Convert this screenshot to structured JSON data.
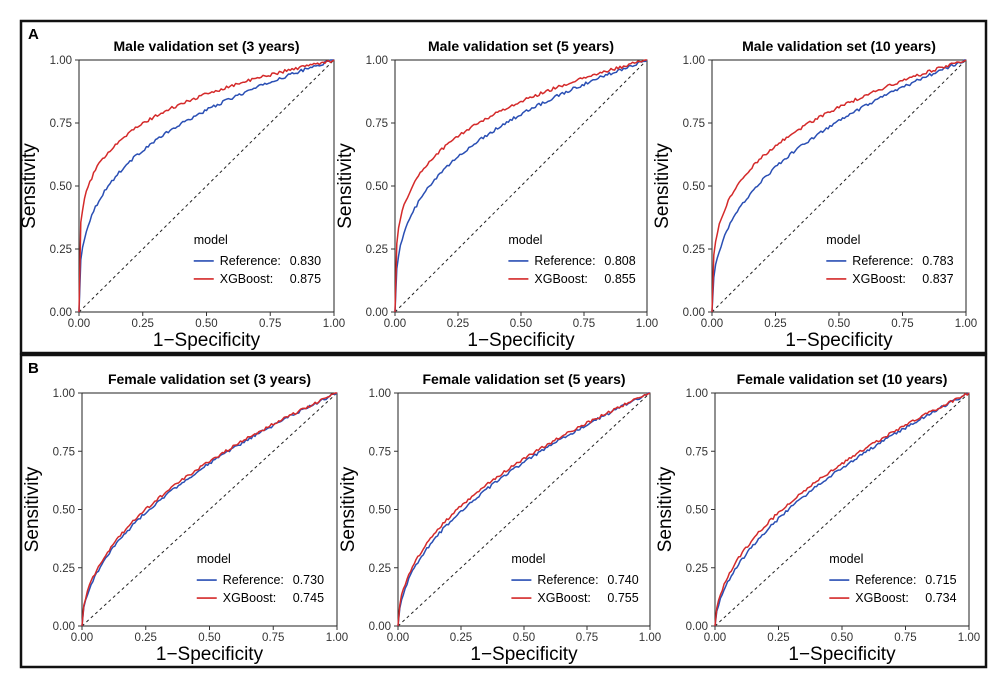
{
  "panels": [
    {
      "letter": "A"
    },
    {
      "letter": "B"
    }
  ],
  "colors": {
    "reference": "#2a4fb4",
    "xgboost": "#d42a2a",
    "diagonal": "#222222",
    "frame": "#111111"
  },
  "chart_data": [
    {
      "type": "line",
      "panel": "A",
      "title": "Male validation set (3 years)",
      "xlabel": "1−Specificity",
      "ylabel": "Sensitivity",
      "xlim": [
        0,
        1
      ],
      "ylim": [
        0,
        1
      ],
      "xticks": [
        "0.00",
        "0.25",
        "0.50",
        "0.75",
        "1.00"
      ],
      "yticks": [
        "0.00",
        "0.25",
        "0.50",
        "0.75",
        "1.00"
      ],
      "legend_title": "model",
      "legend_position": "bottom-right",
      "series": [
        {
          "name": "Reference:",
          "auc": "0.830",
          "color": "#2a4fb4",
          "shape": 0.32
        },
        {
          "name": "XGBoost:",
          "auc": "0.875",
          "color": "#d42a2a",
          "shape": 0.21
        }
      ]
    },
    {
      "type": "line",
      "panel": "A",
      "title": "Male validation set (5 years)",
      "xlabel": "1−Specificity",
      "ylabel": "Sensitivity",
      "xlim": [
        0,
        1
      ],
      "ylim": [
        0,
        1
      ],
      "xticks": [
        "0.00",
        "0.25",
        "0.50",
        "0.75",
        "1.00"
      ],
      "yticks": [
        "0.00",
        "0.25",
        "0.50",
        "0.75",
        "1.00"
      ],
      "legend_title": "model",
      "legend_position": "bottom-right",
      "series": [
        {
          "name": "Reference:",
          "auc": "0.808",
          "color": "#2a4fb4",
          "shape": 0.35
        },
        {
          "name": "XGBoost:",
          "auc": "0.855",
          "color": "#d42a2a",
          "shape": 0.26
        }
      ]
    },
    {
      "type": "line",
      "panel": "A",
      "title": "Male validation set (10 years)",
      "xlabel": "1−Specificity",
      "ylabel": "Sensitivity",
      "xlim": [
        0,
        1
      ],
      "ylim": [
        0,
        1
      ],
      "xticks": [
        "0.00",
        "0.25",
        "0.50",
        "0.75",
        "1.00"
      ],
      "yticks": [
        "0.00",
        "0.25",
        "0.50",
        "0.75",
        "1.00"
      ],
      "legend_title": "model",
      "legend_position": "bottom-right",
      "series": [
        {
          "name": "Reference:",
          "auc": "0.783",
          "color": "#2a4fb4",
          "shape": 0.4
        },
        {
          "name": "XGBoost:",
          "auc": "0.837",
          "color": "#d42a2a",
          "shape": 0.3
        }
      ]
    },
    {
      "type": "line",
      "panel": "B",
      "title": "Female validation set (3 years)",
      "xlabel": "1−Specificity",
      "ylabel": "Sensitivity",
      "xlim": [
        0,
        1
      ],
      "ylim": [
        0,
        1
      ],
      "xticks": [
        "0.00",
        "0.25",
        "0.50",
        "0.75",
        "1.00"
      ],
      "yticks": [
        "0.00",
        "0.25",
        "0.50",
        "0.75",
        "1.00"
      ],
      "legend_title": "model",
      "legend_position": "bottom-right",
      "series": [
        {
          "name": "Reference:",
          "auc": "0.730",
          "color": "#2a4fb4",
          "shape": 0.52
        },
        {
          "name": "XGBoost:",
          "auc": "0.745",
          "color": "#d42a2a",
          "shape": 0.5
        }
      ]
    },
    {
      "type": "line",
      "panel": "B",
      "title": "Female validation set (5 years)",
      "xlabel": "1−Specificity",
      "ylabel": "Sensitivity",
      "xlim": [
        0,
        1
      ],
      "ylim": [
        0,
        1
      ],
      "xticks": [
        "0.00",
        "0.25",
        "0.50",
        "0.75",
        "1.00"
      ],
      "yticks": [
        "0.00",
        "0.25",
        "0.50",
        "0.75",
        "1.00"
      ],
      "legend_title": "model",
      "legend_position": "bottom-right",
      "series": [
        {
          "name": "Reference:",
          "auc": "0.740",
          "color": "#2a4fb4",
          "shape": 0.51
        },
        {
          "name": "XGBoost:",
          "auc": "0.755",
          "color": "#d42a2a",
          "shape": 0.48
        }
      ]
    },
    {
      "type": "line",
      "panel": "B",
      "title": "Female validation set (10 years)",
      "xlabel": "1−Specificity",
      "ylabel": "Sensitivity",
      "xlim": [
        0,
        1
      ],
      "ylim": [
        0,
        1
      ],
      "xticks": [
        "0.00",
        "0.25",
        "0.50",
        "0.75",
        "1.00"
      ],
      "yticks": [
        "0.00",
        "0.25",
        "0.50",
        "0.75",
        "1.00"
      ],
      "legend_title": "model",
      "legend_position": "bottom-right",
      "series": [
        {
          "name": "Reference:",
          "auc": "0.715",
          "color": "#2a4fb4",
          "shape": 0.56
        },
        {
          "name": "XGBoost:",
          "auc": "0.734",
          "color": "#d42a2a",
          "shape": 0.52
        }
      ]
    }
  ]
}
